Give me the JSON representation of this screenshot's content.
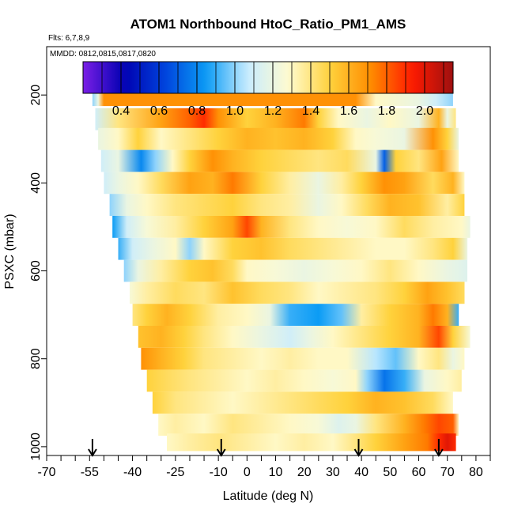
{
  "chart_data": {
    "type": "heatmap",
    "title": "ATOM1 Northbound HtoC_Ratio_PM1_AMS",
    "flights_label": "Flts: 6,7,8,9",
    "dates_label": "MMDD: 0812,0815,0817,0820",
    "xlabel": "Latitude (deg N)",
    "ylabel": "PSXC (mbar)",
    "xlim": [
      -70,
      85
    ],
    "ylim": [
      1020,
      90
    ],
    "x_ticks": [
      -70,
      -55,
      -40,
      -25,
      -10,
      0,
      10,
      20,
      30,
      40,
      50,
      60,
      70,
      80
    ],
    "x_tick_labels": [
      "-70",
      "-55",
      "-40",
      "-25",
      "-10",
      "0",
      "10",
      "20",
      "30",
      "40",
      "50",
      "60",
      "70",
      "80"
    ],
    "y_ticks": [
      200,
      400,
      600,
      800,
      1000
    ],
    "y_tick_labels": [
      "200",
      "400",
      "600",
      "800",
      "1000"
    ],
    "colorbar": {
      "range": [
        0.2,
        2.15
      ],
      "ticks": [
        0.4,
        0.6,
        0.8,
        1.0,
        1.2,
        1.4,
        1.6,
        1.8,
        2.0
      ],
      "tick_labels": [
        "0.4",
        "0.6",
        "0.8",
        "1.0",
        "1.2",
        "1.4",
        "1.6",
        "1.8",
        "2.0"
      ],
      "colors": [
        "#7a1fe6",
        "#0000b0",
        "#0044dd",
        "#0b9cf5",
        "#c8ecff",
        "#fffbd0",
        "#ffd23c",
        "#ff8c00",
        "#ff1a00",
        "#9e1010"
      ]
    },
    "arrows_latitude": [
      -54,
      -9,
      39,
      67
    ],
    "bands": [
      {
        "p": 200,
        "h": 50,
        "v": [
          [
            -54,
            1.0
          ],
          [
            -52,
            1.2
          ],
          [
            -50,
            1.7
          ],
          [
            38,
            1.7
          ],
          [
            45,
            1.3
          ],
          [
            60,
            1.2
          ],
          [
            66,
            1.1
          ],
          [
            72,
            1.0
          ]
        ]
      },
      {
        "p": 255,
        "h": 50,
        "v": [
          [
            -53,
            1.1
          ],
          [
            -45,
            1.4
          ],
          [
            -30,
            1.65
          ],
          [
            -20,
            1.8
          ],
          [
            -15,
            1.9
          ],
          [
            -10,
            1.7
          ],
          [
            0,
            1.5
          ],
          [
            10,
            1.6
          ],
          [
            20,
            1.75
          ],
          [
            25,
            1.5
          ],
          [
            32,
            1.3
          ],
          [
            42,
            1.2
          ],
          [
            50,
            1.3
          ],
          [
            60,
            1.2
          ],
          [
            67,
            1.6
          ],
          [
            70,
            1.2
          ],
          [
            73,
            1.4
          ]
        ]
      },
      {
        "p": 300,
        "h": 50,
        "v": [
          [
            -52,
            1.2
          ],
          [
            -45,
            1.3
          ],
          [
            -38,
            1.5
          ],
          [
            -30,
            1.3
          ],
          [
            -20,
            1.4
          ],
          [
            -10,
            1.5
          ],
          [
            0,
            1.6
          ],
          [
            10,
            1.55
          ],
          [
            20,
            1.6
          ],
          [
            30,
            1.5
          ],
          [
            38,
            1.3
          ],
          [
            45,
            1.25
          ],
          [
            55,
            1.2
          ],
          [
            65,
            1.7
          ],
          [
            70,
            1.5
          ],
          [
            74,
            1.2
          ]
        ]
      },
      {
        "p": 350,
        "h": 50,
        "v": [
          [
            -51,
            1.1
          ],
          [
            -45,
            1.2
          ],
          [
            -37,
            0.8
          ],
          [
            -32,
            1.0
          ],
          [
            -26,
            1.3
          ],
          [
            -20,
            1.5
          ],
          [
            -12,
            1.7
          ],
          [
            -5,
            1.6
          ],
          [
            5,
            1.5
          ],
          [
            15,
            1.45
          ],
          [
            25,
            1.4
          ],
          [
            35,
            1.45
          ],
          [
            45,
            1.2
          ],
          [
            48,
            0.7
          ],
          [
            52,
            1.5
          ],
          [
            60,
            1.4
          ],
          [
            68,
            1.65
          ],
          [
            74,
            1.3
          ]
        ]
      },
      {
        "p": 400,
        "h": 50,
        "v": [
          [
            -50,
            1.1
          ],
          [
            -45,
            1.2
          ],
          [
            -38,
            1.3
          ],
          [
            -30,
            1.45
          ],
          [
            -20,
            1.65
          ],
          [
            -12,
            1.6
          ],
          [
            -5,
            1.75
          ],
          [
            5,
            1.5
          ],
          [
            15,
            1.35
          ],
          [
            25,
            1.2
          ],
          [
            33,
            1.35
          ],
          [
            40,
            1.5
          ],
          [
            48,
            1.7
          ],
          [
            55,
            1.65
          ],
          [
            65,
            1.45
          ],
          [
            72,
            1.6
          ],
          [
            76,
            1.3
          ]
        ]
      },
      {
        "p": 450,
        "h": 50,
        "v": [
          [
            -48,
            1.0
          ],
          [
            -42,
            1.2
          ],
          [
            -35,
            1.3
          ],
          [
            -25,
            1.4
          ],
          [
            -15,
            1.45
          ],
          [
            -5,
            1.5
          ],
          [
            5,
            1.4
          ],
          [
            15,
            1.35
          ],
          [
            25,
            1.2
          ],
          [
            33,
            1.3
          ],
          [
            42,
            1.45
          ],
          [
            50,
            1.6
          ],
          [
            60,
            1.55
          ],
          [
            70,
            1.35
          ],
          [
            76,
            1.5
          ]
        ]
      },
      {
        "p": 500,
        "h": 50,
        "v": [
          [
            -47,
            0.85
          ],
          [
            -42,
            1.1
          ],
          [
            -35,
            1.25
          ],
          [
            -25,
            1.35
          ],
          [
            -15,
            1.5
          ],
          [
            -5,
            1.65
          ],
          [
            0,
            1.85
          ],
          [
            5,
            1.6
          ],
          [
            15,
            1.4
          ],
          [
            25,
            1.3
          ],
          [
            35,
            1.25
          ],
          [
            45,
            1.3
          ],
          [
            55,
            1.45
          ],
          [
            65,
            1.35
          ],
          [
            75,
            1.3
          ],
          [
            78,
            1.2
          ]
        ]
      },
      {
        "p": 550,
        "h": 50,
        "v": [
          [
            -45,
            0.9
          ],
          [
            -40,
            1.1
          ],
          [
            -33,
            1.2
          ],
          [
            -25,
            1.3
          ],
          [
            -20,
            1.0
          ],
          [
            -15,
            1.3
          ],
          [
            -5,
            1.5
          ],
          [
            5,
            1.55
          ],
          [
            15,
            1.45
          ],
          [
            25,
            1.4
          ],
          [
            35,
            1.35
          ],
          [
            45,
            1.3
          ],
          [
            55,
            1.3
          ],
          [
            65,
            1.4
          ],
          [
            72,
            1.5
          ],
          [
            77,
            1.2
          ]
        ]
      },
      {
        "p": 600,
        "h": 50,
        "v": [
          [
            -43,
            1.0
          ],
          [
            -38,
            1.2
          ],
          [
            -30,
            1.35
          ],
          [
            -20,
            1.5
          ],
          [
            -12,
            1.55
          ],
          [
            -5,
            1.45
          ],
          [
            0,
            1.3
          ],
          [
            10,
            1.25
          ],
          [
            20,
            1.2
          ],
          [
            30,
            1.25
          ],
          [
            40,
            1.3
          ],
          [
            50,
            1.4
          ],
          [
            60,
            1.3
          ],
          [
            70,
            1.2
          ],
          [
            77,
            1.15
          ]
        ]
      },
      {
        "p": 650,
        "h": 50,
        "v": [
          [
            -41,
            1.25
          ],
          [
            -35,
            1.35
          ],
          [
            -25,
            1.45
          ],
          [
            -15,
            1.4
          ],
          [
            -5,
            1.55
          ],
          [
            5,
            1.45
          ],
          [
            15,
            1.4
          ],
          [
            25,
            1.3
          ],
          [
            35,
            1.35
          ],
          [
            45,
            1.4
          ],
          [
            55,
            1.5
          ],
          [
            63,
            1.65
          ],
          [
            70,
            1.55
          ],
          [
            76,
            1.45
          ]
        ]
      },
      {
        "p": 700,
        "h": 50,
        "v": [
          [
            -40,
            1.4
          ],
          [
            -35,
            1.5
          ],
          [
            -28,
            1.6
          ],
          [
            -20,
            1.5
          ],
          [
            -10,
            1.35
          ],
          [
            0,
            1.3
          ],
          [
            8,
            1.2
          ],
          [
            15,
            0.9
          ],
          [
            25,
            0.85
          ],
          [
            33,
            0.95
          ],
          [
            40,
            1.35
          ],
          [
            50,
            1.5
          ],
          [
            60,
            1.6
          ],
          [
            65,
            1.75
          ],
          [
            70,
            1.6
          ],
          [
            74,
            0.9
          ]
        ]
      },
      {
        "p": 750,
        "h": 50,
        "v": [
          [
            -38,
            1.55
          ],
          [
            -30,
            1.6
          ],
          [
            -22,
            1.5
          ],
          [
            -15,
            1.4
          ],
          [
            -5,
            1.3
          ],
          [
            5,
            1.2
          ],
          [
            15,
            1.1
          ],
          [
            22,
            1.2
          ],
          [
            30,
            1.3
          ],
          [
            40,
            1.4
          ],
          [
            50,
            1.5
          ],
          [
            60,
            1.6
          ],
          [
            67,
            1.85
          ],
          [
            72,
            1.5
          ],
          [
            78,
            1.25
          ]
        ]
      },
      {
        "p": 800,
        "h": 50,
        "v": [
          [
            -37,
            1.7
          ],
          [
            -30,
            1.6
          ],
          [
            -22,
            1.5
          ],
          [
            -15,
            1.4
          ],
          [
            -5,
            1.35
          ],
          [
            5,
            1.3
          ],
          [
            15,
            1.35
          ],
          [
            25,
            1.3
          ],
          [
            35,
            1.3
          ],
          [
            45,
            1.05
          ],
          [
            52,
            0.95
          ],
          [
            60,
            1.3
          ],
          [
            67,
            1.4
          ],
          [
            72,
            1.2
          ],
          [
            76,
            1.3
          ]
        ]
      },
      {
        "p": 850,
        "h": 50,
        "v": [
          [
            -35,
            1.5
          ],
          [
            -28,
            1.45
          ],
          [
            -20,
            1.4
          ],
          [
            -10,
            1.35
          ],
          [
            0,
            1.3
          ],
          [
            10,
            1.35
          ],
          [
            20,
            1.3
          ],
          [
            30,
            1.25
          ],
          [
            38,
            1.3
          ],
          [
            42,
            1.0
          ],
          [
            48,
            0.75
          ],
          [
            55,
            0.9
          ],
          [
            62,
            1.2
          ],
          [
            70,
            1.3
          ],
          [
            75,
            1.35
          ]
        ]
      },
      {
        "p": 900,
        "h": 50,
        "v": [
          [
            -33,
            1.5
          ],
          [
            -25,
            1.4
          ],
          [
            -15,
            1.35
          ],
          [
            -5,
            1.3
          ],
          [
            5,
            1.35
          ],
          [
            15,
            1.4
          ],
          [
            25,
            1.45
          ],
          [
            35,
            1.5
          ],
          [
            45,
            1.6
          ],
          [
            55,
            1.55
          ],
          [
            65,
            1.45
          ],
          [
            72,
            1.3
          ]
        ]
      },
      {
        "p": 950,
        "h": 50,
        "v": [
          [
            -31,
            1.3
          ],
          [
            -25,
            1.35
          ],
          [
            -15,
            1.3
          ],
          [
            -5,
            1.4
          ],
          [
            5,
            1.35
          ],
          [
            15,
            1.3
          ],
          [
            25,
            1.25
          ],
          [
            32,
            1.15
          ],
          [
            38,
            1.2
          ],
          [
            45,
            1.4
          ],
          [
            55,
            1.6
          ],
          [
            62,
            1.75
          ],
          [
            67,
            1.85
          ],
          [
            72,
            1.8
          ],
          [
            74,
            1.3
          ]
        ]
      },
      {
        "p": 990,
        "h": 40,
        "v": [
          [
            -28,
            1.3
          ],
          [
            -20,
            1.35
          ],
          [
            -10,
            1.4
          ],
          [
            0,
            1.35
          ],
          [
            10,
            1.3
          ],
          [
            20,
            1.35
          ],
          [
            30,
            1.3
          ],
          [
            38,
            1.4
          ],
          [
            45,
            1.5
          ],
          [
            55,
            1.65
          ],
          [
            63,
            1.75
          ],
          [
            67,
            1.9
          ],
          [
            70,
            2.0
          ],
          [
            73,
            1.9
          ]
        ]
      }
    ]
  }
}
